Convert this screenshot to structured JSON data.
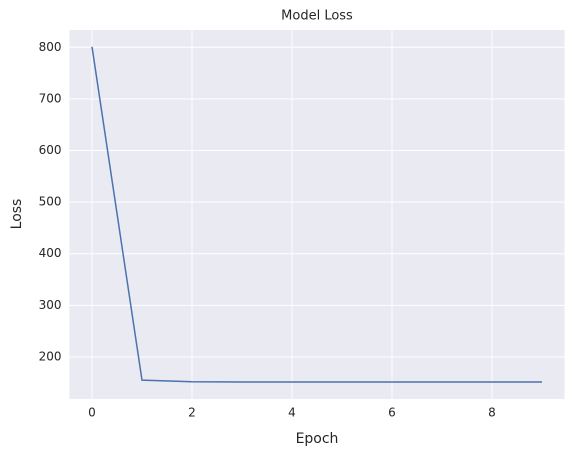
{
  "chart_data": {
    "type": "line",
    "title": "Model Loss",
    "x_label": "Epoch",
    "y_label": "Loss",
    "x": [
      0,
      1,
      2,
      3,
      4,
      5,
      6,
      7,
      8,
      9
    ],
    "values": [
      801,
      155,
      152,
      151.5,
      151.5,
      151.5,
      151.5,
      151.5,
      151.5,
      151.5
    ],
    "color": "#4c72b0",
    "xlim": [
      -0.45,
      9.45
    ],
    "xticks": [
      0,
      2,
      4,
      6,
      8
    ],
    "ylim": [
      118.5,
      833.5
    ],
    "yticks": [
      200,
      300,
      400,
      500,
      600,
      700,
      800
    ],
    "grid": true
  }
}
